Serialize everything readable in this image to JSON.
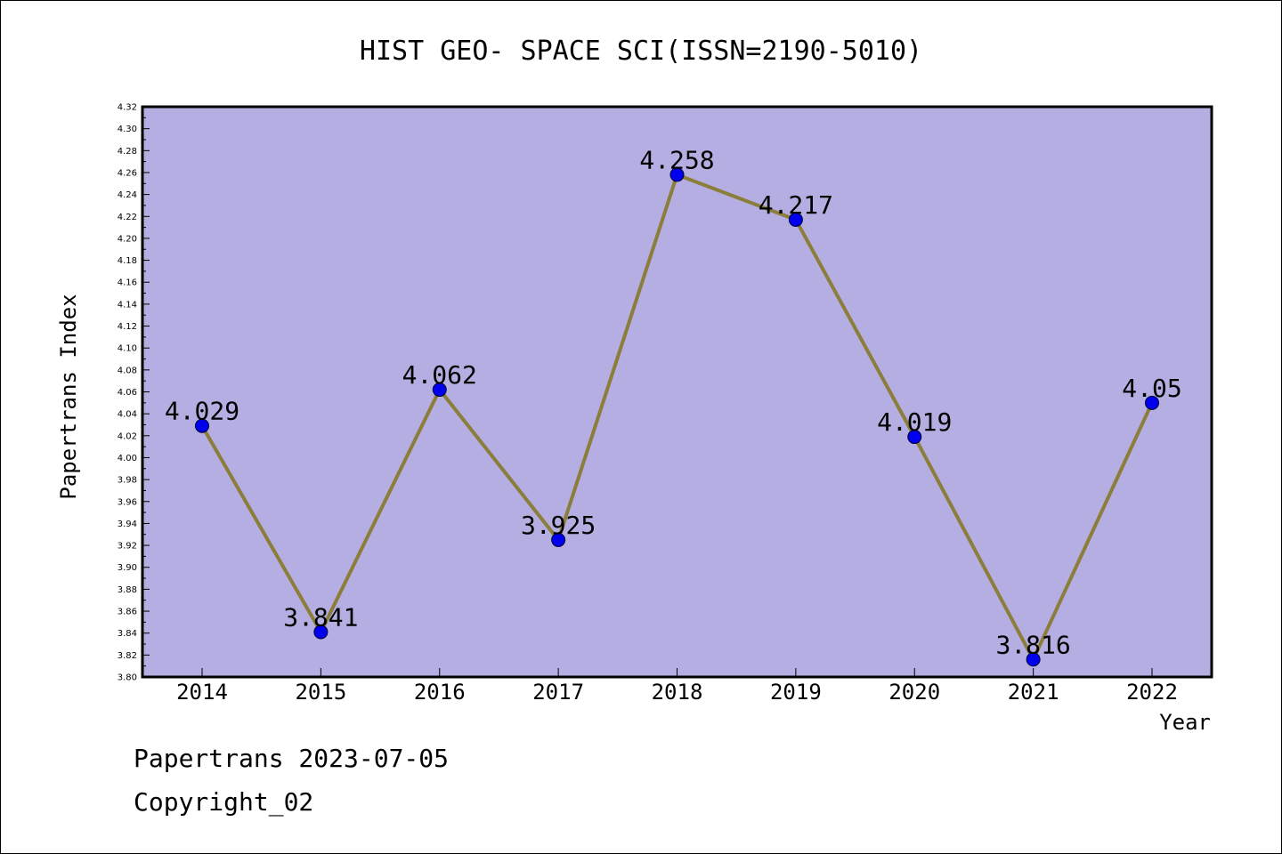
{
  "chart_data": {
    "type": "line",
    "title": "HIST GEO- SPACE SCI(ISSN=2190-5010)",
    "xlabel": "Year",
    "ylabel": "Papertrans Index",
    "categories": [
      "2014",
      "2015",
      "2016",
      "2017",
      "2018",
      "2019",
      "2020",
      "2021",
      "2022"
    ],
    "series": [
      {
        "values": [
          4.029,
          3.841,
          4.062,
          3.925,
          4.258,
          4.217,
          4.019,
          3.816,
          4.05
        ]
      }
    ],
    "data_labels": [
      "4.029",
      "3.841",
      "4.062",
      "3.925",
      "4.258",
      "4.217",
      "4.019",
      "3.816",
      "4.05"
    ],
    "ylim": [
      3.8,
      4.32
    ],
    "ytick_step": 0.02,
    "grid": false,
    "colors": {
      "plot_background": "#b4aee2",
      "line": "#8b7d3a",
      "marker": "#0000ee"
    }
  },
  "footer": {
    "date_line": "Papertrans 2023-07-05",
    "copyright": "Copyright_02"
  }
}
